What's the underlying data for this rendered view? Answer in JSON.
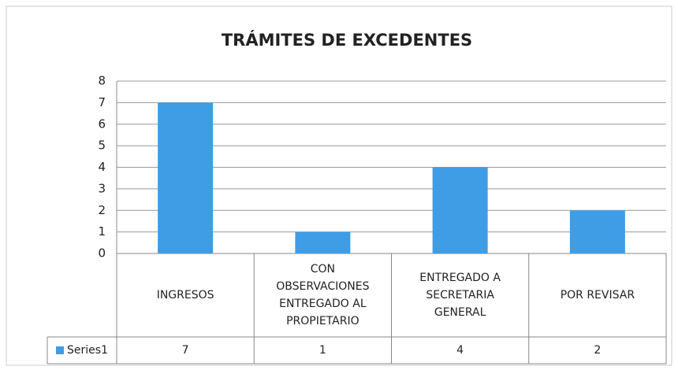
{
  "chart_data": {
    "type": "bar",
    "title": "TRÁMITES DE EXCEDENTES",
    "categories": [
      "INGRESOS",
      "CON OBSERVACIONES ENTREGADO AL PROPIETARIO",
      "ENTREGADO A SECRETARIA GENERAL",
      "POR REVISAR"
    ],
    "series": [
      {
        "name": "Series1",
        "color": "#3f9de6",
        "values": [
          7,
          1,
          4,
          2
        ]
      }
    ],
    "ylim": [
      0,
      8
    ],
    "yticks": [
      0,
      1,
      2,
      3,
      4,
      5,
      6,
      7,
      8
    ],
    "grid": true
  }
}
